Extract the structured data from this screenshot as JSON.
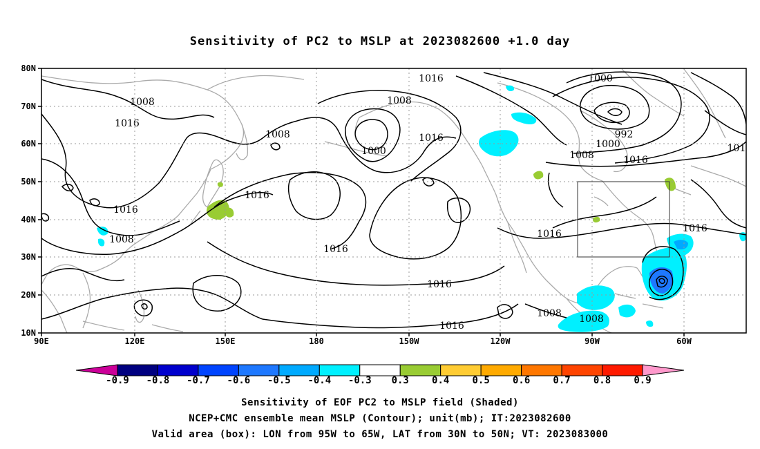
{
  "title": "Sensitivity of PC2 to MSLP at 2023082600 +1.0 day",
  "lat_labels": [
    "80N",
    "70N",
    "60N",
    "50N",
    "40N",
    "30N",
    "20N",
    "10N"
  ],
  "lon_labels": [
    "90E",
    "120E",
    "150E",
    "180",
    "150W",
    "120W",
    "90W",
    "60W"
  ],
  "contour_labels": [
    {
      "text": "1016"
    },
    {
      "text": "1000"
    },
    {
      "text": "1008"
    },
    {
      "text": "1008"
    },
    {
      "text": "1016"
    },
    {
      "text": "1008"
    },
    {
      "text": "992"
    },
    {
      "text": "1000"
    },
    {
      "text": "1016"
    },
    {
      "text": "1000"
    },
    {
      "text": "1008"
    },
    {
      "text": "1016"
    },
    {
      "text": "101"
    },
    {
      "text": "1016"
    },
    {
      "text": "1016"
    },
    {
      "text": "1016"
    },
    {
      "text": "1016"
    },
    {
      "text": "1008"
    },
    {
      "text": "1016"
    },
    {
      "text": "1016"
    },
    {
      "text": "1016"
    },
    {
      "text": "1008"
    },
    {
      "text": "1008"
    },
    {
      "text": "1008"
    }
  ],
  "colorbar": {
    "labels": [
      "-0.9",
      "-0.8",
      "-0.7",
      "-0.6",
      "-0.5",
      "-0.4",
      "-0.3",
      "0.3",
      "0.4",
      "0.5",
      "0.6",
      "0.7",
      "0.8",
      "0.9"
    ],
    "colors": [
      "#000080",
      "#0000cd",
      "#0044ff",
      "#1e78ff",
      "#00aaff",
      "#00f0ff",
      "#ffffff",
      "#99cc33",
      "#ffcc33",
      "#ffaa00",
      "#ff7700",
      "#ff4400",
      "#ff1a00"
    ],
    "low_end_color": "#cc0099",
    "high_end_color": "#ff99cc"
  },
  "caption": {
    "line1": "Sensitivity of EOF PC2 to MSLP field (Shaded)",
    "line2": "NCEP+CMC ensemble mean MSLP (Contour); unit(mb); IT:2023082600",
    "line3": "Valid area (box): LON from 95W to 65W, LAT from 30N to 50N; VT: 2023083000"
  }
}
